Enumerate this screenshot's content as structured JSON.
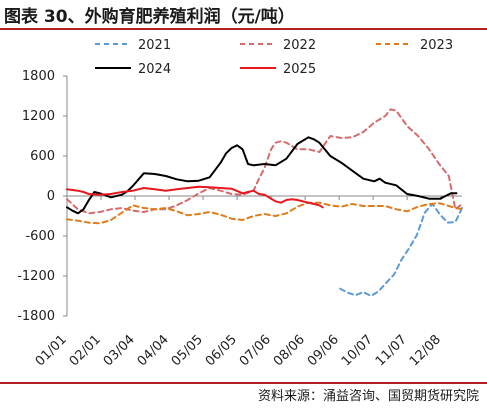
{
  "header": {
    "title": "图表 30、外购育肥养殖利润（元/吨）"
  },
  "footer": {
    "source": "资料来源：涌益咨询、国贸期货研究院"
  },
  "colors": {
    "accent_rule": "#b01f24"
  },
  "chart_data": {
    "type": "line",
    "title": "",
    "xlabel": "",
    "ylabel": "",
    "ylim": [
      -1800,
      1800
    ],
    "yticks": [
      1800,
      1200,
      600,
      0,
      -600,
      -1200,
      -1800
    ],
    "xlim": [
      0,
      360
    ],
    "xtick_labels": [
      "01/01",
      "02/01",
      "03/04",
      "04/04",
      "05/05",
      "06/05",
      "07/06",
      "08/06",
      "09/06",
      "10/07",
      "11/07",
      "12/08"
    ],
    "xtick_positions": [
      0,
      31,
      62,
      93,
      124,
      155,
      186,
      217,
      248,
      279,
      310,
      341
    ],
    "grid": false,
    "legend_placement": "top",
    "series": [
      {
        "name": "2021",
        "color": "#5b9bd5",
        "dash": "dashed",
        "x": [
          249,
          256,
          263,
          270,
          277,
          284,
          291,
          298,
          305,
          312,
          319,
          326,
          333,
          340,
          347,
          354,
          360
        ],
        "y": [
          -1390,
          -1450,
          -1490,
          -1440,
          -1500,
          -1430,
          -1300,
          -1180,
          -950,
          -780,
          -580,
          -250,
          -120,
          -280,
          -400,
          -390,
          -180
        ]
      },
      {
        "name": "2022",
        "color": "#d66b6b",
        "dash": "dashed",
        "x": [
          0,
          10,
          20,
          30,
          40,
          50,
          60,
          70,
          80,
          90,
          100,
          110,
          120,
          130,
          140,
          150,
          160,
          170,
          175,
          180,
          186,
          190,
          195,
          200,
          210,
          220,
          230,
          240,
          250,
          260,
          270,
          280,
          290,
          295,
          300,
          310,
          320,
          330,
          340,
          348,
          354,
          360
        ],
        "y": [
          -50,
          -200,
          -260,
          -240,
          -200,
          -180,
          -220,
          -240,
          -200,
          -200,
          -140,
          -60,
          40,
          120,
          80,
          30,
          20,
          80,
          260,
          420,
          700,
          800,
          820,
          800,
          700,
          700,
          660,
          900,
          870,
          880,
          960,
          1100,
          1200,
          1300,
          1280,
          1050,
          900,
          700,
          460,
          300,
          -200,
          -120
        ]
      },
      {
        "name": "2023",
        "color": "#e07b18",
        "dash": "dashed",
        "x": [
          0,
          10,
          20,
          30,
          40,
          50,
          60,
          70,
          80,
          90,
          100,
          110,
          120,
          130,
          140,
          150,
          160,
          170,
          180,
          186,
          190,
          200,
          210,
          220,
          230,
          240,
          250,
          260,
          270,
          280,
          290,
          300,
          310,
          320,
          330,
          340,
          350,
          360
        ],
        "y": [
          -350,
          -370,
          -400,
          -410,
          -360,
          -250,
          -140,
          -180,
          -200,
          -180,
          -230,
          -290,
          -270,
          -240,
          -280,
          -340,
          -360,
          -300,
          -270,
          -290,
          -300,
          -260,
          -160,
          -100,
          -100,
          -140,
          -160,
          -120,
          -150,
          -150,
          -150,
          -200,
          -230,
          -160,
          -120,
          -110,
          -160,
          -200
        ]
      },
      {
        "name": "2024",
        "color": "#000000",
        "dash": "solid",
        "x": [
          0,
          5,
          10,
          15,
          20,
          25,
          30,
          40,
          50,
          55,
          60,
          70,
          80,
          90,
          100,
          110,
          120,
          130,
          140,
          145,
          150,
          155,
          160,
          165,
          170,
          180,
          190,
          200,
          210,
          220,
          225,
          230,
          240,
          250,
          260,
          270,
          280,
          285,
          290,
          300,
          310,
          320,
          330,
          340,
          345,
          350,
          355
        ],
        "y": [
          -170,
          -220,
          -260,
          -200,
          -60,
          60,
          40,
          -20,
          20,
          70,
          150,
          340,
          330,
          300,
          250,
          220,
          230,
          280,
          500,
          640,
          720,
          760,
          700,
          480,
          460,
          480,
          460,
          560,
          780,
          880,
          850,
          800,
          600,
          500,
          380,
          260,
          220,
          260,
          200,
          160,
          30,
          0,
          -40,
          -40,
          0,
          40,
          40
        ]
      },
      {
        "name": "2025",
        "color": "#e5191f",
        "dash": "solid",
        "x": [
          0,
          5,
          10,
          15,
          20,
          30,
          40,
          50,
          60,
          70,
          80,
          90,
          100,
          110,
          120,
          130,
          140,
          150,
          160,
          165,
          170,
          175,
          180,
          185,
          190,
          195,
          200,
          205,
          210,
          220,
          225,
          230,
          233
        ],
        "y": [
          100,
          90,
          80,
          60,
          30,
          20,
          30,
          60,
          80,
          120,
          100,
          80,
          100,
          120,
          140,
          130,
          120,
          110,
          40,
          60,
          80,
          30,
          20,
          -30,
          -80,
          -100,
          -60,
          -50,
          -60,
          -100,
          -120,
          -140,
          -170
        ]
      }
    ]
  }
}
